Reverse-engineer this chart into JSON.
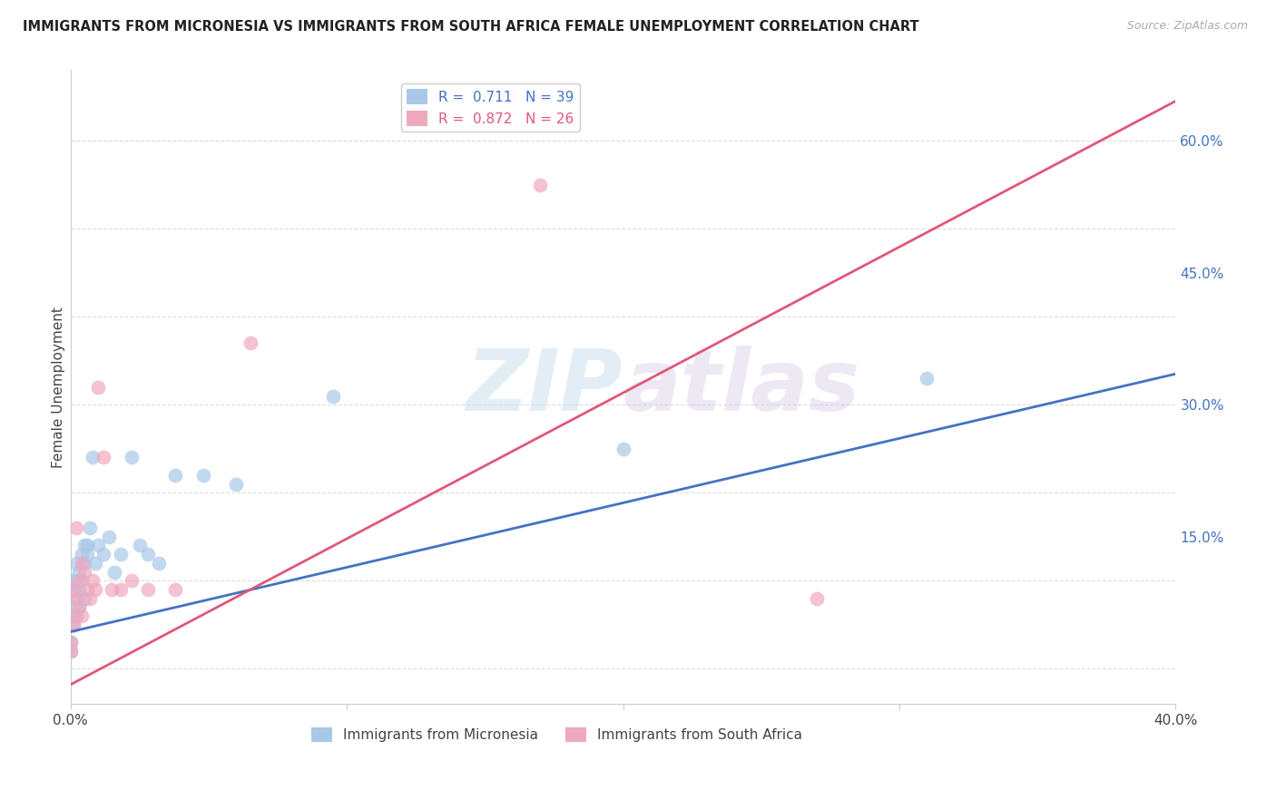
{
  "title": "IMMIGRANTS FROM MICRONESIA VS IMMIGRANTS FROM SOUTH AFRICA FEMALE UNEMPLOYMENT CORRELATION CHART",
  "source": "Source: ZipAtlas.com",
  "ylabel": "Female Unemployment",
  "xlim": [
    0.0,
    0.4
  ],
  "ylim": [
    -0.04,
    0.68
  ],
  "grid_color": "#dddddd",
  "background_color": "#ffffff",
  "watermark_zip": "ZIP",
  "watermark_atlas": "atlas",
  "r1": 0.711,
  "n1": 39,
  "r2": 0.872,
  "n2": 26,
  "color_micronesia": "#a8c8e8",
  "color_south_africa": "#f0a8bc",
  "line_color_micronesia": "#4472c4",
  "line_color_south_africa": "#e05878",
  "label_micronesia": "Immigrants from Micronesia",
  "label_south_africa": "Immigrants from South Africa",
  "mic_x": [
    0.0,
    0.0,
    0.001,
    0.001,
    0.001,
    0.001,
    0.001,
    0.002,
    0.002,
    0.002,
    0.002,
    0.003,
    0.003,
    0.003,
    0.004,
    0.004,
    0.005,
    0.005,
    0.005,
    0.006,
    0.006,
    0.007,
    0.008,
    0.009,
    0.01,
    0.012,
    0.014,
    0.016,
    0.018,
    0.022,
    0.025,
    0.028,
    0.032,
    0.038,
    0.048,
    0.06,
    0.095,
    0.2,
    0.31
  ],
  "mic_y": [
    0.03,
    0.02,
    0.06,
    0.09,
    0.1,
    0.07,
    0.05,
    0.12,
    0.1,
    0.08,
    0.06,
    0.11,
    0.09,
    0.07,
    0.13,
    0.1,
    0.14,
    0.12,
    0.08,
    0.13,
    0.14,
    0.16,
    0.24,
    0.12,
    0.14,
    0.13,
    0.15,
    0.11,
    0.13,
    0.24,
    0.14,
    0.13,
    0.12,
    0.22,
    0.22,
    0.21,
    0.31,
    0.25,
    0.33
  ],
  "sa_x": [
    0.0,
    0.0,
    0.001,
    0.001,
    0.001,
    0.002,
    0.002,
    0.003,
    0.003,
    0.004,
    0.004,
    0.005,
    0.006,
    0.007,
    0.008,
    0.009,
    0.01,
    0.012,
    0.015,
    0.018,
    0.022,
    0.028,
    0.038,
    0.065,
    0.17,
    0.27
  ],
  "sa_y": [
    0.03,
    0.02,
    0.06,
    0.09,
    0.05,
    0.16,
    0.08,
    0.1,
    0.07,
    0.12,
    0.06,
    0.11,
    0.09,
    0.08,
    0.1,
    0.09,
    0.32,
    0.24,
    0.09,
    0.09,
    0.1,
    0.09,
    0.09,
    0.37,
    0.55,
    0.08
  ],
  "line_mic_x0": 0.0,
  "line_mic_y0": 0.042,
  "line_mic_x1": 0.4,
  "line_mic_y1": 0.335,
  "line_sa_x0": 0.0,
  "line_sa_y0": -0.018,
  "line_sa_x1": 0.4,
  "line_sa_y1": 0.645
}
